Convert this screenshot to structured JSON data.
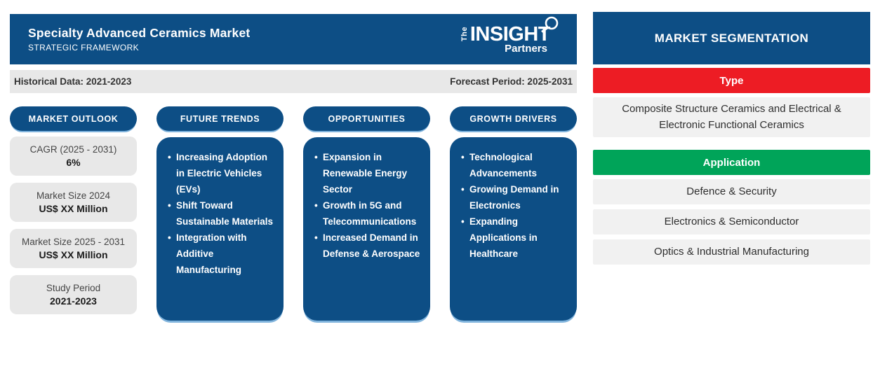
{
  "header": {
    "title": "Specialty Advanced Ceramics Market",
    "subtitle": "STRATEGIC FRAMEWORK",
    "logo": {
      "the": "The",
      "insight": "INSIGHT",
      "partners": "Partners"
    }
  },
  "period_bar": {
    "historical": "Historical Data: 2021-2023",
    "forecast": "Forecast Period: 2025-2031"
  },
  "columns": [
    {
      "title": "MARKET OUTLOOK",
      "cards": [
        {
          "label": "CAGR (2025 - 2031)",
          "value": "6%"
        },
        {
          "label": "Market Size 2024",
          "value": "US$ XX Million"
        },
        {
          "label": "Market Size 2025 - 2031",
          "value": "US$ XX Million"
        },
        {
          "label": "Study Period",
          "value": "2021-2023"
        }
      ]
    },
    {
      "title": "FUTURE TRENDS",
      "bullets": [
        "Increasing Adoption in Electric Vehicles (EVs)",
        "Shift Toward Sustainable Materials",
        "Integration with Additive Manufacturing"
      ]
    },
    {
      "title": "OPPORTUNITIES",
      "bullets": [
        "Expansion in Renewable Energy Sector",
        "Growth in 5G and Telecommunications",
        "Increased Demand in Defense & Aerospace"
      ]
    },
    {
      "title": "GROWTH DRIVERS",
      "bullets": [
        "Technological Advancements",
        "Growing Demand in Electronics",
        "Expanding Applications in Healthcare"
      ]
    }
  ],
  "segmentation": {
    "title": "MARKET SEGMENTATION",
    "sections": [
      {
        "label": "Type",
        "color": "#ed1c24",
        "items": [
          "Composite Structure Ceramics and Electrical & Electronic Functional Ceramics"
        ]
      },
      {
        "label": "Application",
        "color": "#00a459",
        "items": [
          "Defence & Security",
          "Electronics & Semiconductor",
          "Optics & Industrial Manufacturing"
        ]
      }
    ]
  },
  "colors": {
    "primary_blue": "#0d4e85",
    "type_red": "#ed1c24",
    "application_green": "#00a459",
    "card_gray": "#e8e8e8",
    "row_gray": "#f1f1f1"
  }
}
